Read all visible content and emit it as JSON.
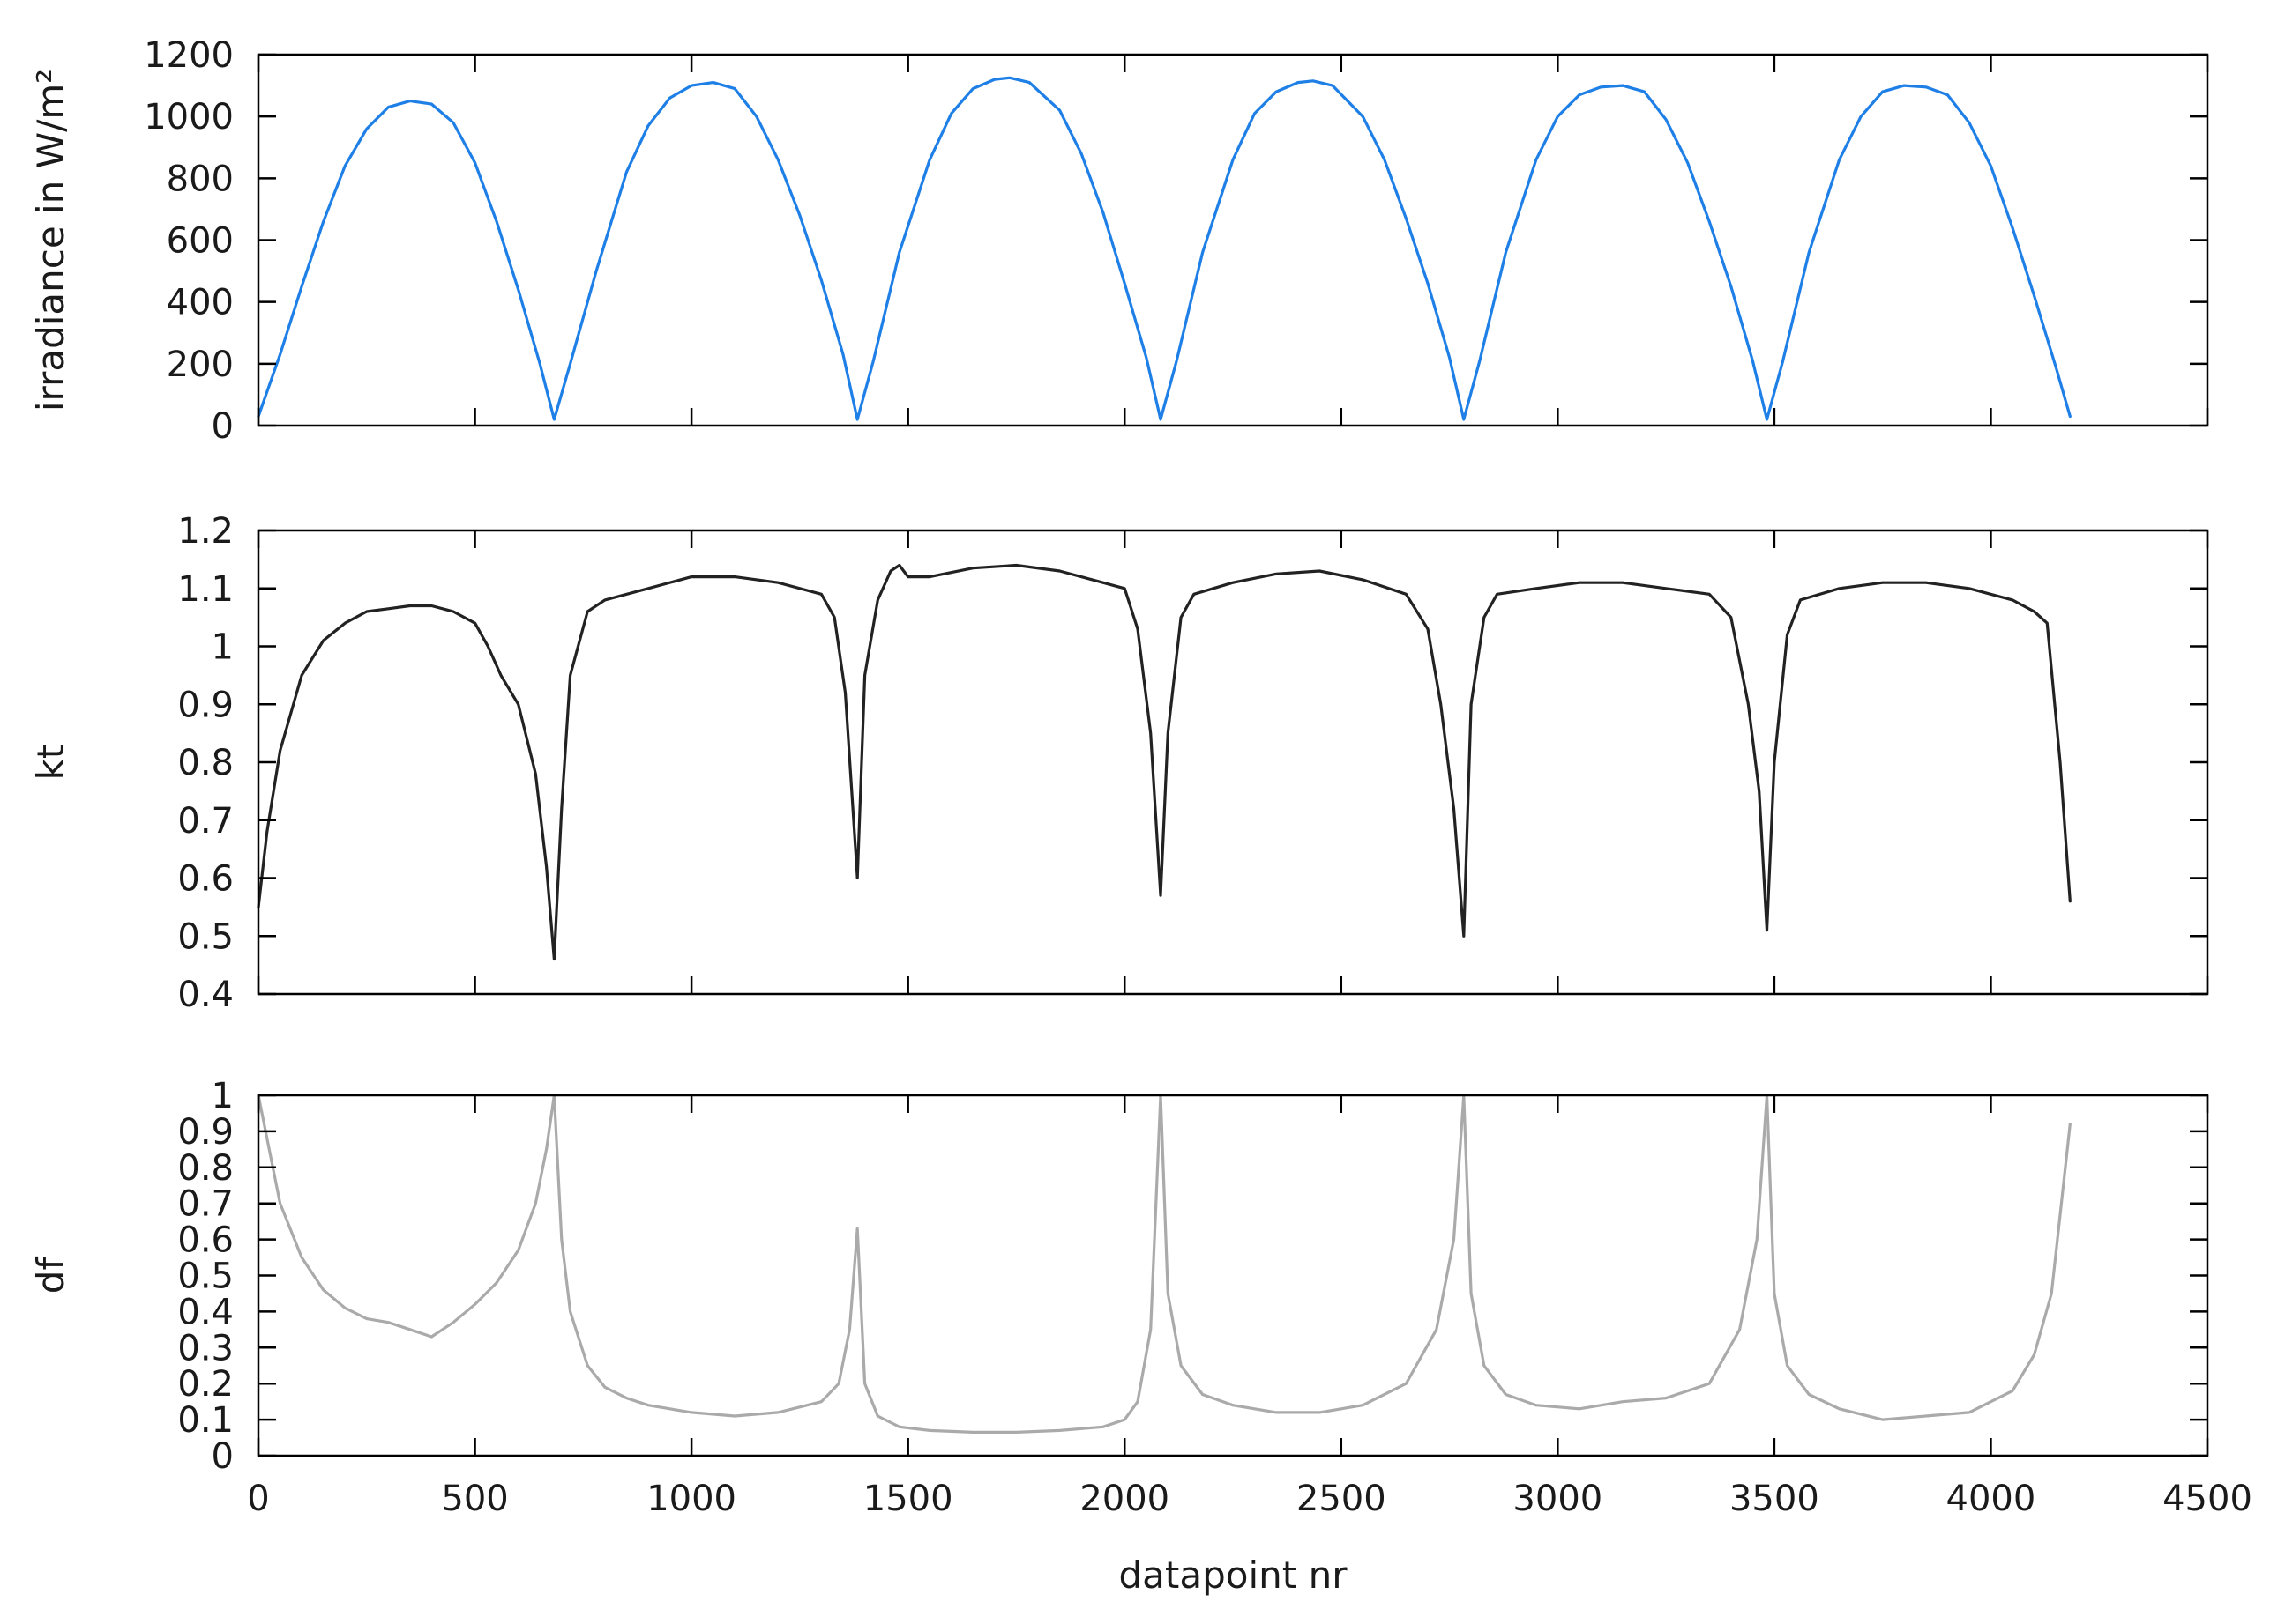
{
  "chart_data": [
    {
      "type": "line",
      "ylabel": "irradiance in W/m²",
      "xlim": [
        0,
        4500
      ],
      "ylim": [
        0,
        1200
      ],
      "yticks": [
        0,
        200,
        400,
        600,
        800,
        1000,
        1200
      ],
      "xticks": [
        0,
        500,
        1000,
        1500,
        2000,
        2500,
        3000,
        3500,
        4000,
        4500
      ],
      "show_xtick_labels": false,
      "grid": false,
      "color": "#1e7fe6",
      "series": [
        {
          "x": [
            0,
            50,
            100,
            150,
            200,
            250,
            300,
            350,
            400,
            450,
            500,
            550,
            600,
            650,
            683,
            720,
            780,
            850,
            900,
            950,
            1000,
            1050,
            1100,
            1150,
            1200,
            1250,
            1300,
            1350,
            1383,
            1420,
            1480,
            1550,
            1600,
            1650,
            1700,
            1735,
            1780,
            1850,
            1900,
            1950,
            2000,
            2050,
            2083,
            2120,
            2180,
            2250,
            2300,
            2350,
            2400,
            2435,
            2480,
            2550,
            2600,
            2650,
            2700,
            2750,
            2783,
            2820,
            2880,
            2950,
            3000,
            3050,
            3100,
            3150,
            3200,
            3250,
            3300,
            3350,
            3400,
            3450,
            3483,
            3520,
            3580,
            3650,
            3700,
            3750,
            3800,
            3850,
            3900,
            3950,
            4000,
            4050,
            4100,
            4150,
            4183
          ],
          "y": [
            30,
            230,
            450,
            660,
            840,
            960,
            1030,
            1050,
            1040,
            980,
            850,
            660,
            440,
            200,
            20,
            200,
            500,
            820,
            970,
            1060,
            1100,
            1110,
            1090,
            1000,
            860,
            680,
            470,
            230,
            20,
            210,
            560,
            860,
            1010,
            1090,
            1120,
            1125,
            1110,
            1020,
            880,
            690,
            460,
            220,
            20,
            210,
            560,
            860,
            1010,
            1080,
            1110,
            1115,
            1100,
            1000,
            860,
            670,
            460,
            220,
            20,
            210,
            560,
            860,
            1000,
            1070,
            1095,
            1100,
            1080,
            990,
            850,
            660,
            450,
            210,
            20,
            210,
            560,
            860,
            1000,
            1080,
            1100,
            1095,
            1070,
            980,
            840,
            640,
            420,
            190,
            30
          ]
        }
      ]
    },
    {
      "type": "line",
      "ylabel": "kt",
      "xlim": [
        0,
        4500
      ],
      "ylim": [
        0.4,
        1.2
      ],
      "yticks": [
        0.4,
        0.5,
        0.6,
        0.7,
        0.8,
        0.9,
        1,
        1.1,
        1.2
      ],
      "xticks": [
        0,
        500,
        1000,
        1500,
        2000,
        2500,
        3000,
        3500,
        4000,
        4500
      ],
      "show_xtick_labels": false,
      "grid": false,
      "color": "#222222",
      "series": [
        {
          "x": [
            0,
            20,
            50,
            100,
            150,
            200,
            250,
            300,
            350,
            400,
            450,
            500,
            530,
            560,
            600,
            640,
            665,
            683,
            700,
            720,
            760,
            800,
            900,
            1000,
            1100,
            1200,
            1300,
            1330,
            1355,
            1370,
            1383,
            1400,
            1430,
            1460,
            1480,
            1500,
            1550,
            1650,
            1750,
            1850,
            1950,
            2000,
            2030,
            2060,
            2083,
            2100,
            2130,
            2160,
            2250,
            2350,
            2450,
            2550,
            2650,
            2700,
            2730,
            2760,
            2783,
            2800,
            2830,
            2860,
            2950,
            3050,
            3150,
            3250,
            3350,
            3400,
            3440,
            3465,
            3483,
            3500,
            3530,
            3560,
            3650,
            3750,
            3850,
            3950,
            4050,
            4100,
            4130,
            4160,
            4183
          ],
          "y": [
            0.55,
            0.68,
            0.82,
            0.95,
            1.01,
            1.04,
            1.06,
            1.065,
            1.07,
            1.07,
            1.06,
            1.04,
            1.0,
            0.95,
            0.9,
            0.78,
            0.62,
            0.46,
            0.72,
            0.95,
            1.06,
            1.08,
            1.1,
            1.12,
            1.12,
            1.11,
            1.09,
            1.05,
            0.92,
            0.75,
            0.6,
            0.95,
            1.08,
            1.13,
            1.14,
            1.12,
            1.12,
            1.135,
            1.14,
            1.13,
            1.11,
            1.1,
            1.03,
            0.85,
            0.57,
            0.85,
            1.05,
            1.09,
            1.11,
            1.125,
            1.13,
            1.115,
            1.09,
            1.03,
            0.9,
            0.72,
            0.5,
            0.9,
            1.05,
            1.09,
            1.1,
            1.11,
            1.11,
            1.1,
            1.09,
            1.05,
            0.9,
            0.75,
            0.51,
            0.8,
            1.02,
            1.08,
            1.1,
            1.11,
            1.11,
            1.1,
            1.08,
            1.06,
            1.04,
            0.8,
            0.56
          ]
        }
      ]
    },
    {
      "type": "line",
      "xlabel": "datapoint nr",
      "ylabel": "df",
      "xlim": [
        0,
        4500
      ],
      "ylim": [
        0,
        1
      ],
      "yticks": [
        0,
        0.1,
        0.2,
        0.3,
        0.4,
        0.5,
        0.6,
        0.7,
        0.8,
        0.9,
        1
      ],
      "xticks": [
        0,
        500,
        1000,
        1500,
        2000,
        2500,
        3000,
        3500,
        4000,
        4500
      ],
      "show_xtick_labels": true,
      "grid": false,
      "color": "#aaaaaa",
      "series": [
        {
          "x": [
            0,
            20,
            50,
            100,
            150,
            200,
            250,
            300,
            350,
            400,
            450,
            500,
            550,
            600,
            640,
            665,
            683,
            700,
            720,
            760,
            800,
            850,
            900,
            1000,
            1100,
            1200,
            1300,
            1340,
            1365,
            1383,
            1400,
            1430,
            1480,
            1550,
            1650,
            1750,
            1850,
            1950,
            2000,
            2030,
            2060,
            2083,
            2100,
            2130,
            2180,
            2250,
            2350,
            2450,
            2550,
            2650,
            2720,
            2760,
            2783,
            2800,
            2830,
            2880,
            2950,
            3050,
            3150,
            3250,
            3350,
            3420,
            3460,
            3483,
            3500,
            3530,
            3580,
            3650,
            3750,
            3850,
            3950,
            4050,
            4100,
            4140,
            4183
          ],
          "y": [
            1.0,
            0.88,
            0.7,
            0.55,
            0.46,
            0.41,
            0.38,
            0.37,
            0.35,
            0.33,
            0.37,
            0.42,
            0.48,
            0.57,
            0.7,
            0.85,
            1.0,
            0.6,
            0.4,
            0.25,
            0.19,
            0.16,
            0.14,
            0.12,
            0.11,
            0.12,
            0.15,
            0.2,
            0.35,
            0.63,
            0.2,
            0.11,
            0.08,
            0.07,
            0.065,
            0.065,
            0.07,
            0.08,
            0.1,
            0.15,
            0.35,
            1.0,
            0.45,
            0.25,
            0.17,
            0.14,
            0.12,
            0.12,
            0.14,
            0.2,
            0.35,
            0.6,
            1.0,
            0.45,
            0.25,
            0.17,
            0.14,
            0.13,
            0.15,
            0.16,
            0.2,
            0.35,
            0.6,
            1.0,
            0.45,
            0.25,
            0.17,
            0.13,
            0.1,
            0.11,
            0.12,
            0.18,
            0.28,
            0.45,
            0.92
          ]
        }
      ]
    }
  ]
}
